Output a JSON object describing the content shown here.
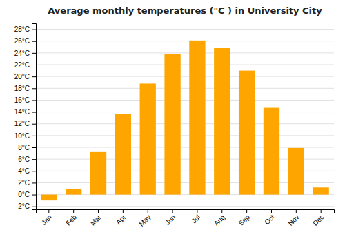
{
  "chart_data": {
    "type": "bar",
    "title": "Average monthly temperatures (°C ) in University City",
    "categories": [
      "Jan",
      "Feb",
      "Mar",
      "Apr",
      "May",
      "Jun",
      "Jul",
      "Aug",
      "Sep",
      "Oct",
      "Nov",
      "Dec"
    ],
    "values": [
      -1.0,
      1.0,
      7.2,
      13.7,
      18.8,
      23.8,
      26.1,
      24.8,
      21.0,
      14.7,
      7.9,
      1.2
    ],
    "color": "#FFA500",
    "ylim": [
      -2.5,
      29.0
    ],
    "yticks": [
      {
        "value": -2,
        "label": "-2°C"
      },
      {
        "value": 0,
        "label": "0°C"
      },
      {
        "value": 2,
        "label": "2°C"
      },
      {
        "value": 4,
        "label": "4°C"
      },
      {
        "value": 6,
        "label": "6°C"
      },
      {
        "value": 8,
        "label": "8°C"
      },
      {
        "value": 10,
        "label": "10°C"
      },
      {
        "value": 12,
        "label": "12°C"
      },
      {
        "value": 14,
        "label": "14°C"
      },
      {
        "value": 16,
        "label": "16°C"
      },
      {
        "value": 18,
        "label": "18°C"
      },
      {
        "value": 20,
        "label": "20°C"
      },
      {
        "value": 22,
        "label": "22°C"
      },
      {
        "value": 24,
        "label": "24°C"
      },
      {
        "value": 26,
        "label": "26°C"
      },
      {
        "value": 28,
        "label": "28°C"
      }
    ],
    "grid": true
  }
}
